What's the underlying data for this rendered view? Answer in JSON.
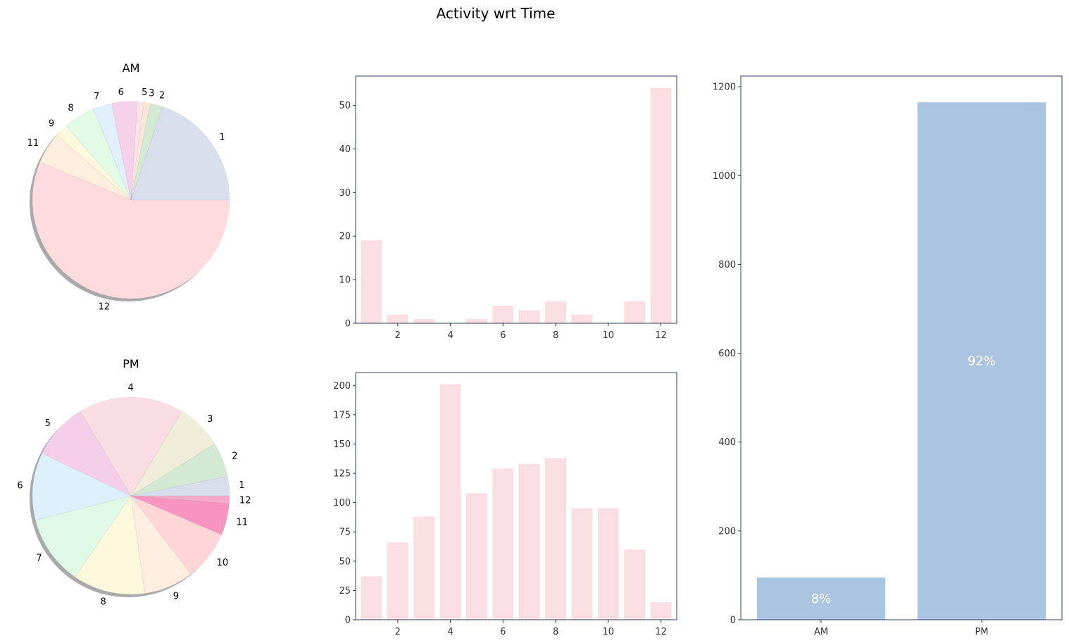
{
  "title": "Activity wrt Time",
  "chart_data": [
    {
      "type": "pie",
      "title": "AM",
      "shadow": true,
      "labels": [
        "1",
        "2",
        "3",
        "5",
        "6",
        "7",
        "8",
        "9",
        "11",
        "12"
      ],
      "values": [
        19,
        2,
        1,
        1,
        4,
        3,
        5,
        2,
        5,
        54
      ],
      "colors": [
        "#d7deec",
        "#d4e9d4",
        "#f9e7d9",
        "#fde3e6",
        "#f5d1e9",
        "#e1effa",
        "#e2f9e6",
        "#fcf8dc",
        "#fdeddf",
        "#fedbdc"
      ]
    },
    {
      "type": "pie",
      "title": "PM",
      "shadow": true,
      "labels": [
        "1",
        "2",
        "3",
        "4",
        "5",
        "6",
        "7",
        "8",
        "9",
        "10",
        "11",
        "12"
      ],
      "values": [
        37,
        66,
        88,
        201,
        108,
        129,
        133,
        138,
        95,
        95,
        60,
        15
      ],
      "colors": [
        "#d7deec",
        "#d4e9d4",
        "#efecda",
        "#f9dde2",
        "#f5cfe9",
        "#ddeffb",
        "#e0f9e6",
        "#fbf8dc",
        "#fdece0",
        "#fed6d8",
        "#f794bf",
        "#f4a9c8"
      ]
    },
    {
      "type": "bar",
      "categories": [
        1,
        2,
        3,
        4,
        5,
        6,
        7,
        8,
        9,
        10,
        11,
        12
      ],
      "values": [
        19,
        2,
        1,
        0,
        1,
        4,
        3,
        5,
        2,
        0,
        5,
        54
      ],
      "xticks": [
        2,
        4,
        6,
        8,
        10,
        12
      ],
      "yticks": [
        0,
        10,
        20,
        30,
        40,
        50
      ],
      "xlim": [
        0.4,
        12.6
      ],
      "ylim": [
        0,
        56.7
      ],
      "color": "#f9dfe3"
    },
    {
      "type": "bar",
      "categories": [
        1,
        2,
        3,
        4,
        5,
        6,
        7,
        8,
        9,
        10,
        11,
        12
      ],
      "values": [
        37,
        66,
        88,
        201,
        108,
        129,
        133,
        138,
        95,
        95,
        60,
        15
      ],
      "xticks": [
        2,
        4,
        6,
        8,
        10,
        12
      ],
      "yticks": [
        0,
        25,
        50,
        75,
        100,
        125,
        150,
        175,
        200
      ],
      "xlim": [
        0.4,
        12.6
      ],
      "ylim": [
        0,
        211
      ],
      "color": "#f9dfe3"
    },
    {
      "type": "bar",
      "categories": [
        "AM",
        "PM"
      ],
      "values": [
        95,
        1165
      ],
      "bar_labels": [
        "8%",
        "92%"
      ],
      "yticks": [
        0,
        200,
        400,
        600,
        800,
        1000,
        1200
      ],
      "ylim": [
        0,
        1224
      ],
      "color": "#aac4e2"
    }
  ]
}
